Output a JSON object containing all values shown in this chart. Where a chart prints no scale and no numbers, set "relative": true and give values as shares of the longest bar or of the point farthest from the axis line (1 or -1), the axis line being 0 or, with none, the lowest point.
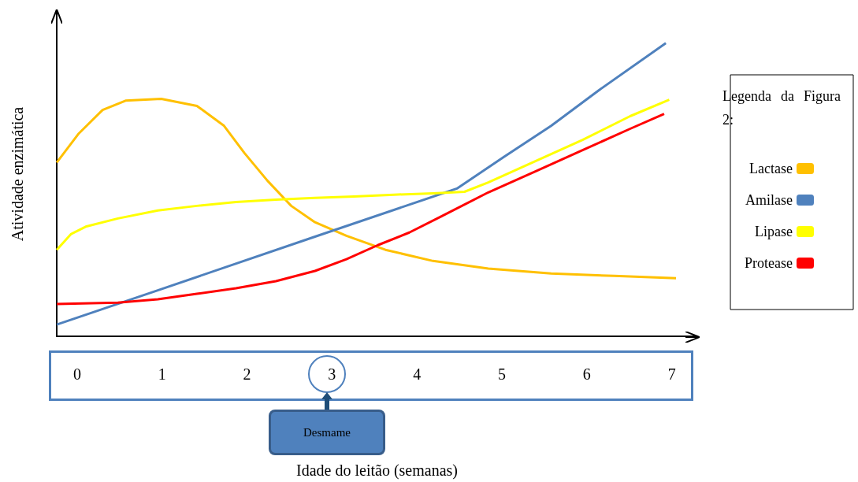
{
  "chart_data": {
    "type": "line",
    "relative": true,
    "xlabel": "Idade do leitão (semanas)",
    "ylabel": "Atividade enzimática",
    "legend_title": "Legenda da Figura 2:",
    "legend": "right",
    "grid": false,
    "marker": "none",
    "line_style": "solid",
    "xlim": [
      -0.24,
      7.3
    ],
    "xticks": [
      0,
      1,
      2,
      3,
      4,
      5,
      6,
      7
    ],
    "annotations": [
      "Desmame"
    ],
    "series": [
      {
        "name": "Lactase",
        "color": "#ffc000",
        "x": [
          -0.24,
          0.02,
          0.3,
          0.57,
          0.99,
          1.41,
          1.73,
          1.97,
          2.24,
          2.52,
          2.8,
          3.17,
          3.63,
          4.19,
          4.84,
          5.58,
          6.32,
          7.05
        ],
        "values": [
          0.593,
          0.692,
          0.772,
          0.804,
          0.81,
          0.786,
          0.718,
          0.625,
          0.531,
          0.445,
          0.389,
          0.343,
          0.295,
          0.257,
          0.231,
          0.214,
          0.206,
          0.198
        ]
      },
      {
        "name": "Amilase",
        "color": "#4f81bd",
        "x": [
          -0.24,
          0.95,
          2.8,
          4.47,
          5.02,
          5.58,
          6.14,
          6.93
        ],
        "values": [
          0.04,
          0.157,
          0.34,
          0.504,
          0.611,
          0.718,
          0.839,
          1.0
        ]
      },
      {
        "name": "Lipase",
        "color": "#ffff00",
        "x": [
          -0.24,
          -0.07,
          0.11,
          0.48,
          0.95,
          1.41,
          1.87,
          2.34,
          2.8,
          3.26,
          3.73,
          4.19,
          4.56,
          4.84,
          5.4,
          5.95,
          6.51,
          6.97
        ],
        "values": [
          0.295,
          0.349,
          0.375,
          0.402,
          0.429,
          0.445,
          0.458,
          0.466,
          0.472,
          0.477,
          0.483,
          0.488,
          0.493,
          0.525,
          0.598,
          0.67,
          0.751,
          0.807
        ]
      },
      {
        "name": "Protease",
        "color": "#ff0000",
        "x": [
          -0.24,
          0.48,
          0.95,
          1.41,
          1.87,
          2.34,
          2.8,
          3.17,
          3.54,
          3.91,
          4.28,
          4.84,
          5.4,
          5.95,
          6.51,
          6.91
        ],
        "values": [
          0.11,
          0.115,
          0.126,
          0.145,
          0.164,
          0.188,
          0.223,
          0.263,
          0.311,
          0.354,
          0.408,
          0.491,
          0.563,
          0.635,
          0.708,
          0.759
        ]
      }
    ]
  }
}
